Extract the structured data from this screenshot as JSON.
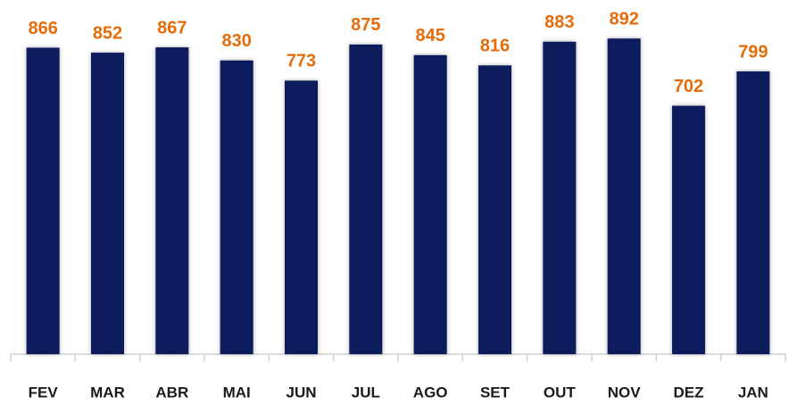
{
  "chart_data": {
    "type": "bar",
    "categories": [
      "FEV",
      "MAR",
      "ABR",
      "MAI",
      "JUN",
      "JUL",
      "AGO",
      "SET",
      "OUT",
      "NOV",
      "DEZ",
      "JAN"
    ],
    "values": [
      866,
      852,
      867,
      830,
      773,
      875,
      845,
      816,
      883,
      892,
      702,
      799
    ],
    "color": "#0b1f5c",
    "label_color": "#e46c0a",
    "ylim": [
      0,
      900
    ]
  }
}
